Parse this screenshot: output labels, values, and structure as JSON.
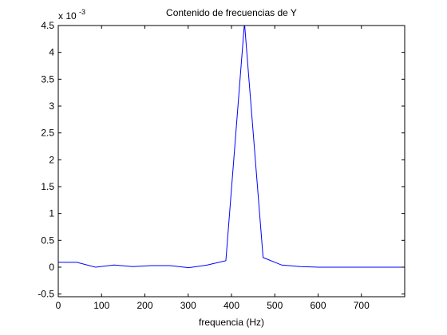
{
  "chart_data": {
    "type": "line",
    "title": "Contenido de frecuencias de Y",
    "xlabel": "frequencia (Hz)",
    "ylabel": "",
    "exponent_label": "x 10",
    "exponent_power": "-3",
    "xlim": [
      0,
      800
    ],
    "ylim": [
      -0.55,
      4.5
    ],
    "xticks": [
      "0",
      "100",
      "200",
      "300",
      "400",
      "500",
      "600",
      "700"
    ],
    "yticks": [
      "-0.5",
      "0",
      "0.5",
      "1",
      "1.5",
      "2",
      "2.5",
      "3",
      "3.5",
      "4",
      "4.5"
    ],
    "grid": false,
    "line_color": "#0000ff",
    "series": [
      {
        "x": [
          0,
          43,
          86,
          129,
          172,
          215,
          258,
          301,
          344,
          387,
          430,
          473,
          516,
          559,
          602,
          645,
          688,
          731,
          774,
          800
        ],
        "y": [
          0.09,
          0.09,
          0.0,
          0.04,
          0.01,
          0.03,
          0.03,
          -0.01,
          0.04,
          0.12,
          4.55,
          0.18,
          0.04,
          0.01,
          0.0,
          0.0,
          0.0,
          0.0,
          0.0,
          0.0
        ]
      }
    ]
  }
}
